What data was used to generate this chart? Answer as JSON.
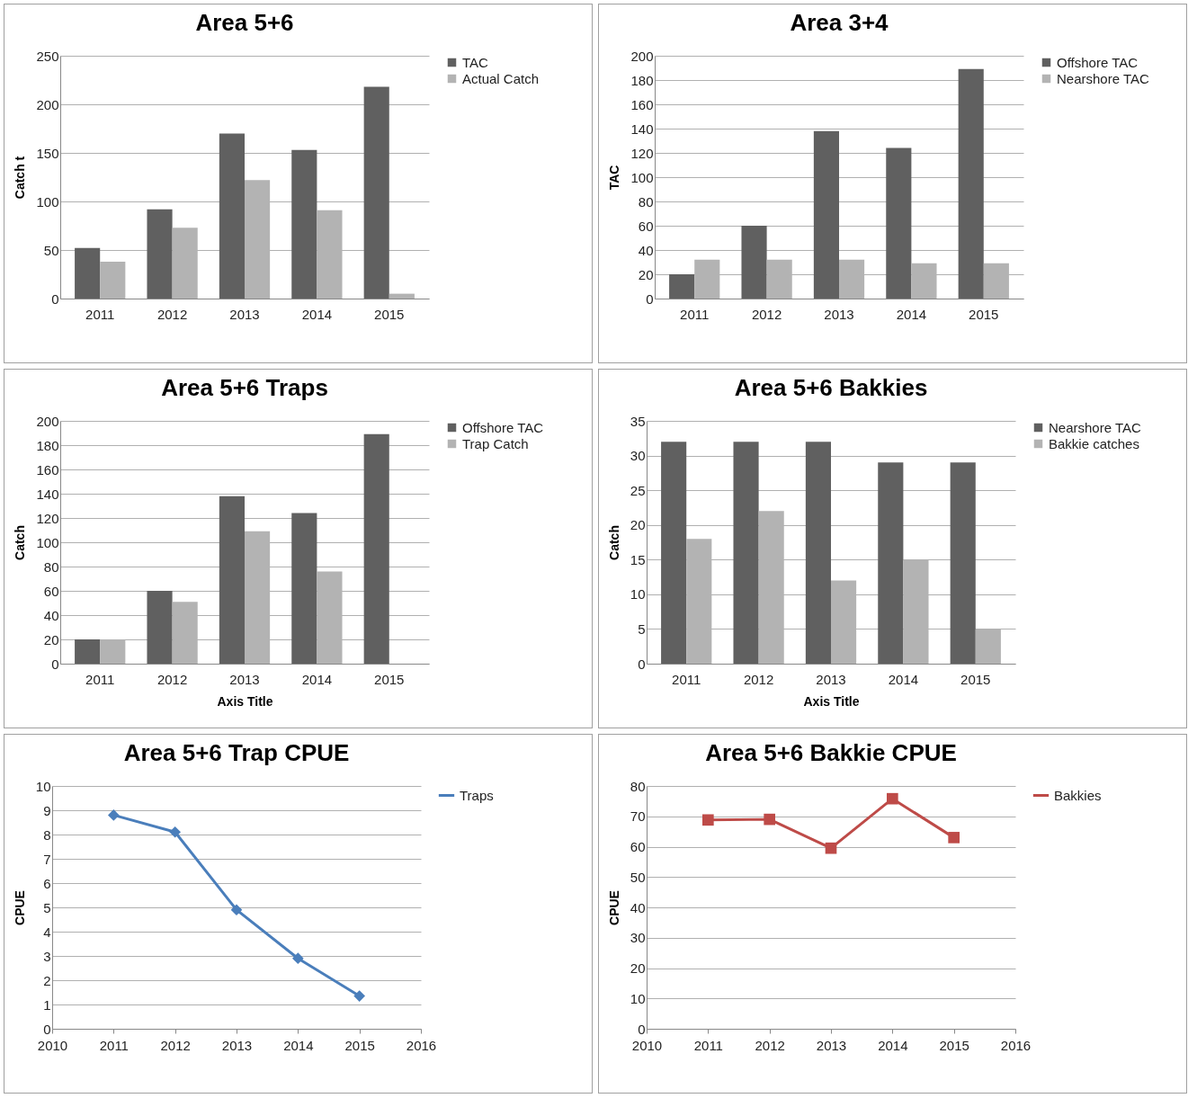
{
  "chart_data": [
    {
      "type": "bar",
      "title": "Area 5+6",
      "ylabel": "Catch t",
      "categories": [
        "2011",
        "2012",
        "2013",
        "2014",
        "2015"
      ],
      "ylim": [
        0,
        250
      ],
      "yticks": [
        0,
        50,
        100,
        150,
        200,
        250
      ],
      "grid": "y",
      "legend": "right",
      "series": [
        {
          "name": "TAC",
          "color": "#606060",
          "values": [
            52,
            92,
            170,
            153,
            218
          ]
        },
        {
          "name": "Actual Catch",
          "color": "#b3b3b3",
          "values": [
            38,
            73,
            122,
            91,
            5
          ]
        }
      ]
    },
    {
      "type": "bar",
      "title": "Area 3+4",
      "ylabel": "TAC",
      "categories": [
        "2011",
        "2012",
        "2013",
        "2014",
        "2015"
      ],
      "ylim": [
        0,
        200
      ],
      "yticks": [
        0,
        20,
        40,
        60,
        80,
        100,
        120,
        140,
        160,
        180,
        200
      ],
      "grid": "y",
      "legend": "right",
      "series": [
        {
          "name": "Offshore TAC",
          "color": "#606060",
          "values": [
            20,
            60,
            138,
            124,
            189
          ]
        },
        {
          "name": "Nearshore TAC",
          "color": "#b3b3b3",
          "values": [
            32,
            32,
            32,
            29,
            29
          ]
        }
      ]
    },
    {
      "type": "bar",
      "title": "Area 5+6 Traps",
      "ylabel": "Catch",
      "xlabel": "Axis Title",
      "categories": [
        "2011",
        "2012",
        "2013",
        "2014",
        "2015"
      ],
      "ylim": [
        0,
        200
      ],
      "yticks": [
        0,
        20,
        40,
        60,
        80,
        100,
        120,
        140,
        160,
        180,
        200
      ],
      "grid": "y",
      "legend": "right",
      "series": [
        {
          "name": "Offshore TAC",
          "color": "#606060",
          "values": [
            20,
            60,
            138,
            124,
            189
          ]
        },
        {
          "name": "Trap Catch",
          "color": "#b3b3b3",
          "values": [
            20,
            51,
            109,
            76,
            null
          ]
        }
      ]
    },
    {
      "type": "bar",
      "title": "Area 5+6 Bakkies",
      "ylabel": "Catch",
      "xlabel": "Axis Title",
      "categories": [
        "2011",
        "2012",
        "2013",
        "2014",
        "2015"
      ],
      "ylim": [
        0,
        35
      ],
      "yticks": [
        0,
        5,
        10,
        15,
        20,
        25,
        30,
        35
      ],
      "grid": "y",
      "legend": "right",
      "series": [
        {
          "name": "Nearshore TAC",
          "color": "#606060",
          "values": [
            32,
            32,
            32,
            29,
            29
          ]
        },
        {
          "name": "Bakkie catches",
          "color": "#b3b3b3",
          "values": [
            18,
            22,
            12,
            15,
            5
          ]
        }
      ]
    },
    {
      "type": "line",
      "title": "Area 5+6 Trap CPUE",
      "ylabel": "CPUE",
      "x": [
        2011,
        2012,
        2013,
        2014,
        2015
      ],
      "xlim": [
        2010,
        2016
      ],
      "xticks": [
        2010,
        2011,
        2012,
        2013,
        2014,
        2015,
        2016
      ],
      "ylim": [
        0,
        10
      ],
      "yticks": [
        0,
        1,
        2,
        3,
        4,
        5,
        6,
        7,
        8,
        9,
        10
      ],
      "grid": "y",
      "legend": "right",
      "marker": "diamond",
      "series": [
        {
          "name": "Traps",
          "color": "#4a7ebb",
          "values": [
            8.8,
            8.1,
            4.9,
            2.9,
            1.35
          ]
        }
      ]
    },
    {
      "type": "line",
      "title": "Area 5+6 Bakkie CPUE",
      "ylabel": "CPUE",
      "x": [
        2011,
        2012,
        2013,
        2014,
        2015
      ],
      "xlim": [
        2010,
        2016
      ],
      "xticks": [
        2010,
        2011,
        2012,
        2013,
        2014,
        2015,
        2016
      ],
      "ylim": [
        0,
        80
      ],
      "yticks": [
        0,
        10,
        20,
        30,
        40,
        50,
        60,
        70,
        80
      ],
      "grid": "y",
      "legend": "right",
      "marker": "square",
      "series": [
        {
          "name": "Bakkies",
          "color": "#be4b48",
          "values": [
            68.8,
            69,
            59.5,
            75.8,
            63
          ]
        }
      ]
    }
  ]
}
